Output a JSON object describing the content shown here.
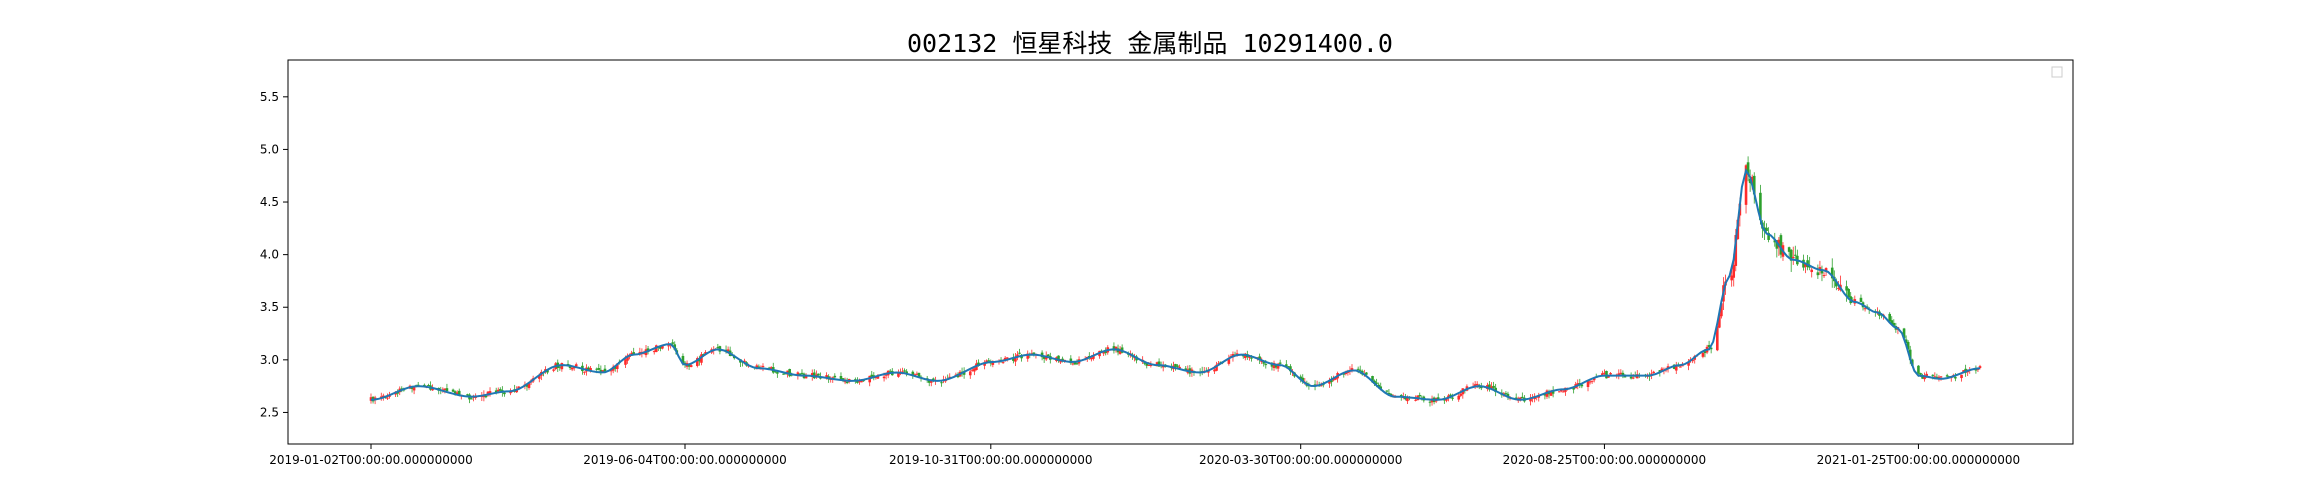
{
  "chart_data": {
    "type": "candlestick",
    "title": "002132 恒星科技 金属制品 10291400.0",
    "xlabel": "",
    "ylabel": "",
    "ylim": [
      2.2,
      5.85
    ],
    "yticks": [
      2.5,
      3.0,
      3.5,
      4.0,
      4.5,
      5.0,
      5.5
    ],
    "ytick_labels": [
      "2.5",
      "3.0",
      "3.5",
      "4.0",
      "4.5",
      "5.0",
      "5.5"
    ],
    "x_date_range": [
      "2019-01-02",
      "2021-02-24"
    ],
    "xtick_labels": [
      "2019-01-02T00:00:00.000000000",
      "2019-06-04T00:00:00.000000000",
      "2019-10-31T00:00:00.000000000",
      "2020-03-30T00:00:00.000000000",
      "2020-08-25T00:00:00.000000000",
      "2021-01-25T00:00:00.000000000"
    ],
    "xtick_dates": [
      "2019-01-02",
      "2019-06-04",
      "2019-10-31",
      "2020-03-30",
      "2020-08-25",
      "2021-01-25"
    ],
    "legend": "top-right (empty box)",
    "grid": false,
    "up_color": "#ff2b2b",
    "down_color": "#2ca02c",
    "line_color": "#1f77b4",
    "line_key_points": [
      [
        "2019-01-02",
        2.62
      ],
      [
        "2019-01-25",
        2.75
      ],
      [
        "2019-02-20",
        2.65
      ],
      [
        "2019-03-10",
        2.7
      ],
      [
        "2019-04-05",
        2.95
      ],
      [
        "2019-04-25",
        2.88
      ],
      [
        "2019-05-10",
        3.05
      ],
      [
        "2019-05-28",
        3.15
      ],
      [
        "2019-06-04",
        2.95
      ],
      [
        "2019-06-20",
        3.1
      ],
      [
        "2019-07-10",
        2.92
      ],
      [
        "2019-08-01",
        2.85
      ],
      [
        "2019-08-25",
        2.8
      ],
      [
        "2019-09-15",
        2.88
      ],
      [
        "2019-10-05",
        2.8
      ],
      [
        "2019-11-01",
        2.98
      ],
      [
        "2019-11-20",
        3.05
      ],
      [
        "2019-12-10",
        2.98
      ],
      [
        "2019-12-30",
        3.1
      ],
      [
        "2020-01-20",
        2.95
      ],
      [
        "2020-02-10",
        2.88
      ],
      [
        "2020-03-01",
        3.05
      ],
      [
        "2020-03-20",
        2.95
      ],
      [
        "2020-04-05",
        2.75
      ],
      [
        "2020-04-25",
        2.9
      ],
      [
        "2020-05-15",
        2.65
      ],
      [
        "2020-06-05",
        2.62
      ],
      [
        "2020-06-25",
        2.75
      ],
      [
        "2020-07-15",
        2.62
      ],
      [
        "2020-08-05",
        2.72
      ],
      [
        "2020-08-25",
        2.85
      ],
      [
        "2020-09-15",
        2.85
      ],
      [
        "2020-10-01",
        2.95
      ],
      [
        "2020-10-15",
        3.1
      ],
      [
        "2020-10-25",
        3.8
      ],
      [
        "2020-11-02",
        4.8
      ],
      [
        "2020-11-12",
        4.2
      ],
      [
        "2020-11-25",
        3.95
      ],
      [
        "2020-12-10",
        3.85
      ],
      [
        "2020-12-25",
        3.55
      ],
      [
        "2021-01-05",
        3.45
      ],
      [
        "2021-01-15",
        3.3
      ],
      [
        "2021-01-25",
        2.85
      ],
      [
        "2021-02-05",
        2.82
      ],
      [
        "2021-02-24",
        2.92
      ]
    ],
    "candle_bars_shown": 520
  }
}
